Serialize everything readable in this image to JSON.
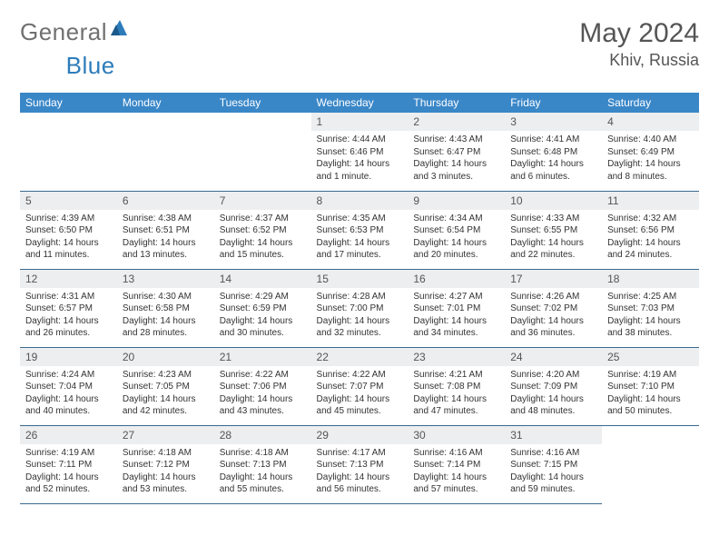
{
  "brand": {
    "part1": "General",
    "part2": "Blue"
  },
  "title": "May 2024",
  "location": "Khiv, Russia",
  "colors": {
    "header_bg": "#3a87c8",
    "header_text": "#ffffff",
    "daynum_bg": "#eceeef",
    "border": "#3a6a90",
    "page_bg": "#ffffff",
    "text": "#333333",
    "brand_gray": "#707070",
    "brand_blue": "#2d7cba"
  },
  "weekdays": [
    "Sunday",
    "Monday",
    "Tuesday",
    "Wednesday",
    "Thursday",
    "Friday",
    "Saturday"
  ],
  "weeks": [
    [
      {
        "day": "",
        "lines": []
      },
      {
        "day": "",
        "lines": []
      },
      {
        "day": "",
        "lines": []
      },
      {
        "day": "1",
        "lines": [
          "Sunrise: 4:44 AM",
          "Sunset: 6:46 PM",
          "Daylight: 14 hours and 1 minute."
        ]
      },
      {
        "day": "2",
        "lines": [
          "Sunrise: 4:43 AM",
          "Sunset: 6:47 PM",
          "Daylight: 14 hours and 3 minutes."
        ]
      },
      {
        "day": "3",
        "lines": [
          "Sunrise: 4:41 AM",
          "Sunset: 6:48 PM",
          "Daylight: 14 hours and 6 minutes."
        ]
      },
      {
        "day": "4",
        "lines": [
          "Sunrise: 4:40 AM",
          "Sunset: 6:49 PM",
          "Daylight: 14 hours and 8 minutes."
        ]
      }
    ],
    [
      {
        "day": "5",
        "lines": [
          "Sunrise: 4:39 AM",
          "Sunset: 6:50 PM",
          "Daylight: 14 hours and 11 minutes."
        ]
      },
      {
        "day": "6",
        "lines": [
          "Sunrise: 4:38 AM",
          "Sunset: 6:51 PM",
          "Daylight: 14 hours and 13 minutes."
        ]
      },
      {
        "day": "7",
        "lines": [
          "Sunrise: 4:37 AM",
          "Sunset: 6:52 PM",
          "Daylight: 14 hours and 15 minutes."
        ]
      },
      {
        "day": "8",
        "lines": [
          "Sunrise: 4:35 AM",
          "Sunset: 6:53 PM",
          "Daylight: 14 hours and 17 minutes."
        ]
      },
      {
        "day": "9",
        "lines": [
          "Sunrise: 4:34 AM",
          "Sunset: 6:54 PM",
          "Daylight: 14 hours and 20 minutes."
        ]
      },
      {
        "day": "10",
        "lines": [
          "Sunrise: 4:33 AM",
          "Sunset: 6:55 PM",
          "Daylight: 14 hours and 22 minutes."
        ]
      },
      {
        "day": "11",
        "lines": [
          "Sunrise: 4:32 AM",
          "Sunset: 6:56 PM",
          "Daylight: 14 hours and 24 minutes."
        ]
      }
    ],
    [
      {
        "day": "12",
        "lines": [
          "Sunrise: 4:31 AM",
          "Sunset: 6:57 PM",
          "Daylight: 14 hours and 26 minutes."
        ]
      },
      {
        "day": "13",
        "lines": [
          "Sunrise: 4:30 AM",
          "Sunset: 6:58 PM",
          "Daylight: 14 hours and 28 minutes."
        ]
      },
      {
        "day": "14",
        "lines": [
          "Sunrise: 4:29 AM",
          "Sunset: 6:59 PM",
          "Daylight: 14 hours and 30 minutes."
        ]
      },
      {
        "day": "15",
        "lines": [
          "Sunrise: 4:28 AM",
          "Sunset: 7:00 PM",
          "Daylight: 14 hours and 32 minutes."
        ]
      },
      {
        "day": "16",
        "lines": [
          "Sunrise: 4:27 AM",
          "Sunset: 7:01 PM",
          "Daylight: 14 hours and 34 minutes."
        ]
      },
      {
        "day": "17",
        "lines": [
          "Sunrise: 4:26 AM",
          "Sunset: 7:02 PM",
          "Daylight: 14 hours and 36 minutes."
        ]
      },
      {
        "day": "18",
        "lines": [
          "Sunrise: 4:25 AM",
          "Sunset: 7:03 PM",
          "Daylight: 14 hours and 38 minutes."
        ]
      }
    ],
    [
      {
        "day": "19",
        "lines": [
          "Sunrise: 4:24 AM",
          "Sunset: 7:04 PM",
          "Daylight: 14 hours and 40 minutes."
        ]
      },
      {
        "day": "20",
        "lines": [
          "Sunrise: 4:23 AM",
          "Sunset: 7:05 PM",
          "Daylight: 14 hours and 42 minutes."
        ]
      },
      {
        "day": "21",
        "lines": [
          "Sunrise: 4:22 AM",
          "Sunset: 7:06 PM",
          "Daylight: 14 hours and 43 minutes."
        ]
      },
      {
        "day": "22",
        "lines": [
          "Sunrise: 4:22 AM",
          "Sunset: 7:07 PM",
          "Daylight: 14 hours and 45 minutes."
        ]
      },
      {
        "day": "23",
        "lines": [
          "Sunrise: 4:21 AM",
          "Sunset: 7:08 PM",
          "Daylight: 14 hours and 47 minutes."
        ]
      },
      {
        "day": "24",
        "lines": [
          "Sunrise: 4:20 AM",
          "Sunset: 7:09 PM",
          "Daylight: 14 hours and 48 minutes."
        ]
      },
      {
        "day": "25",
        "lines": [
          "Sunrise: 4:19 AM",
          "Sunset: 7:10 PM",
          "Daylight: 14 hours and 50 minutes."
        ]
      }
    ],
    [
      {
        "day": "26",
        "lines": [
          "Sunrise: 4:19 AM",
          "Sunset: 7:11 PM",
          "Daylight: 14 hours and 52 minutes."
        ]
      },
      {
        "day": "27",
        "lines": [
          "Sunrise: 4:18 AM",
          "Sunset: 7:12 PM",
          "Daylight: 14 hours and 53 minutes."
        ]
      },
      {
        "day": "28",
        "lines": [
          "Sunrise: 4:18 AM",
          "Sunset: 7:13 PM",
          "Daylight: 14 hours and 55 minutes."
        ]
      },
      {
        "day": "29",
        "lines": [
          "Sunrise: 4:17 AM",
          "Sunset: 7:13 PM",
          "Daylight: 14 hours and 56 minutes."
        ]
      },
      {
        "day": "30",
        "lines": [
          "Sunrise: 4:16 AM",
          "Sunset: 7:14 PM",
          "Daylight: 14 hours and 57 minutes."
        ]
      },
      {
        "day": "31",
        "lines": [
          "Sunrise: 4:16 AM",
          "Sunset: 7:15 PM",
          "Daylight: 14 hours and 59 minutes."
        ]
      },
      {
        "day": "",
        "lines": []
      }
    ]
  ]
}
